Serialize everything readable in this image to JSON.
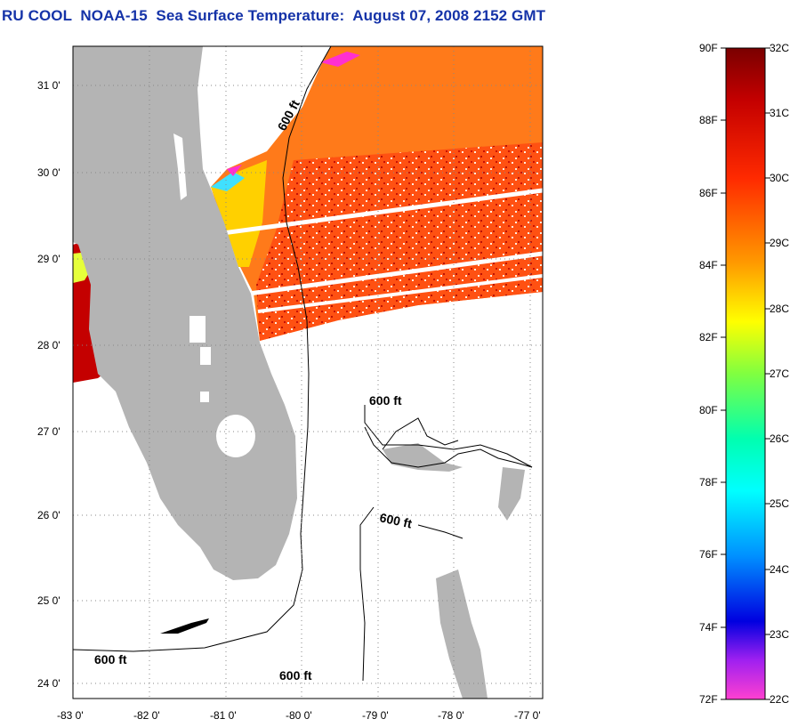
{
  "title": "RU COOL  NOAA-15  Sea Surface Temperature:  August 07, 2008 2152 GMT",
  "map": {
    "x_ticks": [
      "-83 0'",
      "-82 0'",
      "-81 0'",
      "-80 0'",
      "-79 0'",
      "-78 0'",
      "-77 0'"
    ],
    "y_ticks": [
      "31 0'",
      "30 0'",
      "29 0'",
      "28 0'",
      "27 0'",
      "26 0'",
      "25 0'",
      "24 0'"
    ],
    "contour_labels": [
      "600 ft",
      "600 ft",
      "600 ft",
      "600 ft",
      "600 ft"
    ],
    "land_color": "#b4b4b4"
  },
  "colorbar": {
    "fahrenheit": [
      "90F",
      "88F",
      "86F",
      "84F",
      "82F",
      "80F",
      "78F",
      "76F",
      "74F",
      "72F"
    ],
    "celsius": [
      "32C",
      "31C",
      "30C",
      "29C",
      "28C",
      "27C",
      "26C",
      "25C",
      "24C",
      "23C",
      "22C"
    ]
  }
}
